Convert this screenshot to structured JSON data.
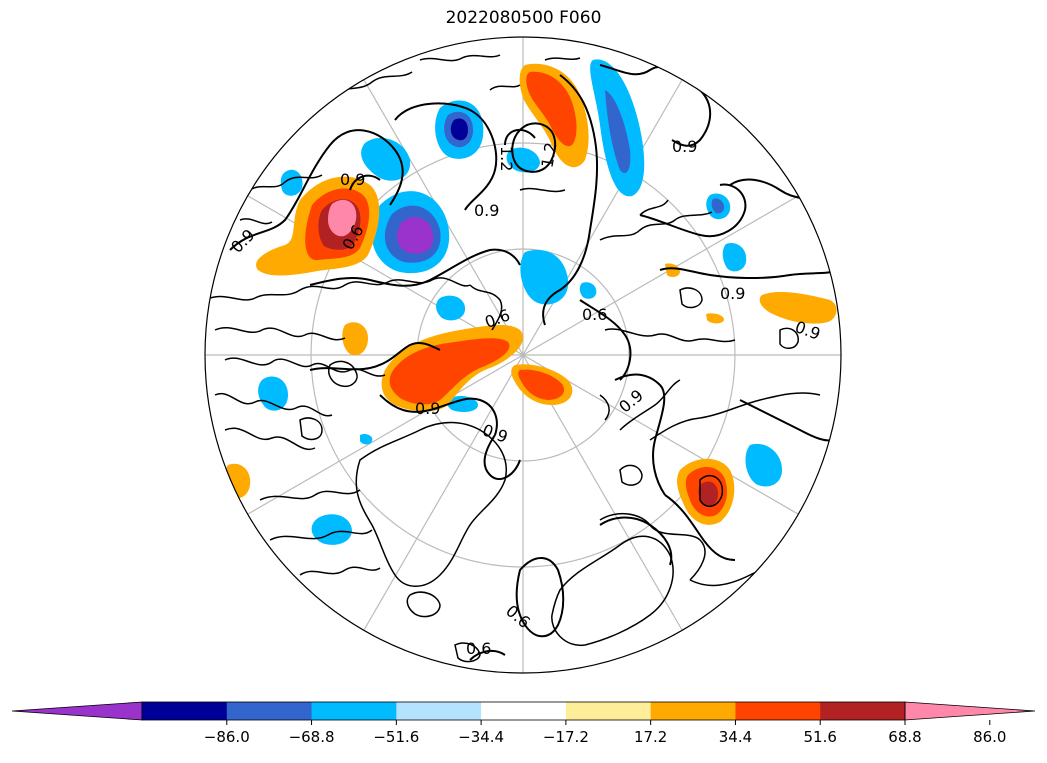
{
  "title": "2022080500 F060",
  "contour_labels": [
    "1.2",
    "1.2",
    "0.9",
    "0.9",
    "0.9",
    "0.9",
    "0.9",
    "0.9",
    "0.6",
    "0.6",
    "0.6",
    "0.9",
    "0.9",
    "0.9",
    "0.6",
    "0.6"
  ],
  "colorbar": {
    "colors": [
      "#9933cc",
      "#000099",
      "#3366cc",
      "#00bbff",
      "#b3e3ff",
      "#ffffff",
      "#ffee99",
      "#ffaa00",
      "#ff4400",
      "#b22222",
      "#ff88aa"
    ],
    "tick_labels": [
      "−86.0",
      "−68.8",
      "−51.6",
      "−34.4",
      "−17.2",
      "17.2",
      "34.4",
      "51.6",
      "68.8",
      "86.0"
    ],
    "extend": "both"
  }
}
